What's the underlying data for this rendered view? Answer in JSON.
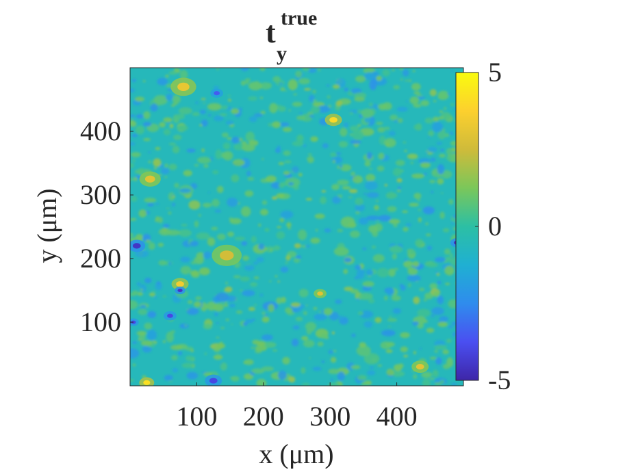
{
  "chart_data": {
    "type": "heatmap",
    "title": {
      "base": "t",
      "subscript": "y",
      "superscript": "true"
    },
    "xlabel": "x (μm)",
    "ylabel": "y (μm)",
    "xlim": [
      0,
      500
    ],
    "ylim": [
      0,
      500
    ],
    "xticks": [
      100,
      200,
      300,
      400
    ],
    "yticks": [
      100,
      200,
      300,
      400
    ],
    "colorbar": {
      "clim": [
        -5,
        5
      ],
      "ticks": [
        5,
        0,
        -5
      ],
      "tick_labels": [
        "5",
        "0",
        "-5"
      ],
      "colormap": "parula",
      "colors": [
        "#3e26a8",
        "#4a4ff1",
        "#2f8ced",
        "#1fb0d2",
        "#2cbfa4",
        "#7bc75a",
        "#cfbb3a",
        "#fcd02e",
        "#f9fb0e"
      ]
    },
    "background_value": -0.6,
    "features": [
      {
        "x": 80,
        "y": 470,
        "value": 3.2,
        "r": 12
      },
      {
        "x": 30,
        "y": 325,
        "value": 3.0,
        "r": 10
      },
      {
        "x": 145,
        "y": 205,
        "value": 2.6,
        "r": 14
      },
      {
        "x": 305,
        "y": 418,
        "value": 4.0,
        "r": 8
      },
      {
        "x": 75,
        "y": 160,
        "value": 3.5,
        "r": 8
      },
      {
        "x": 25,
        "y": 5,
        "value": 4.2,
        "r": 7
      },
      {
        "x": 285,
        "y": 145,
        "value": 3.0,
        "r": 6
      },
      {
        "x": 435,
        "y": 30,
        "value": 3.0,
        "r": 8
      },
      {
        "x": 10,
        "y": 220,
        "value": -4.5,
        "r": 8
      },
      {
        "x": 490,
        "y": 225,
        "value": -4.5,
        "r": 6
      },
      {
        "x": 60,
        "y": 110,
        "value": -4.0,
        "r": 6
      },
      {
        "x": 75,
        "y": 150,
        "value": -4.5,
        "r": 5
      },
      {
        "x": 125,
        "y": 8,
        "value": -4.0,
        "r": 8
      },
      {
        "x": 130,
        "y": 460,
        "value": -3.5,
        "r": 6
      },
      {
        "x": 5,
        "y": 100,
        "value": -4.0,
        "r": 5
      }
    ]
  }
}
